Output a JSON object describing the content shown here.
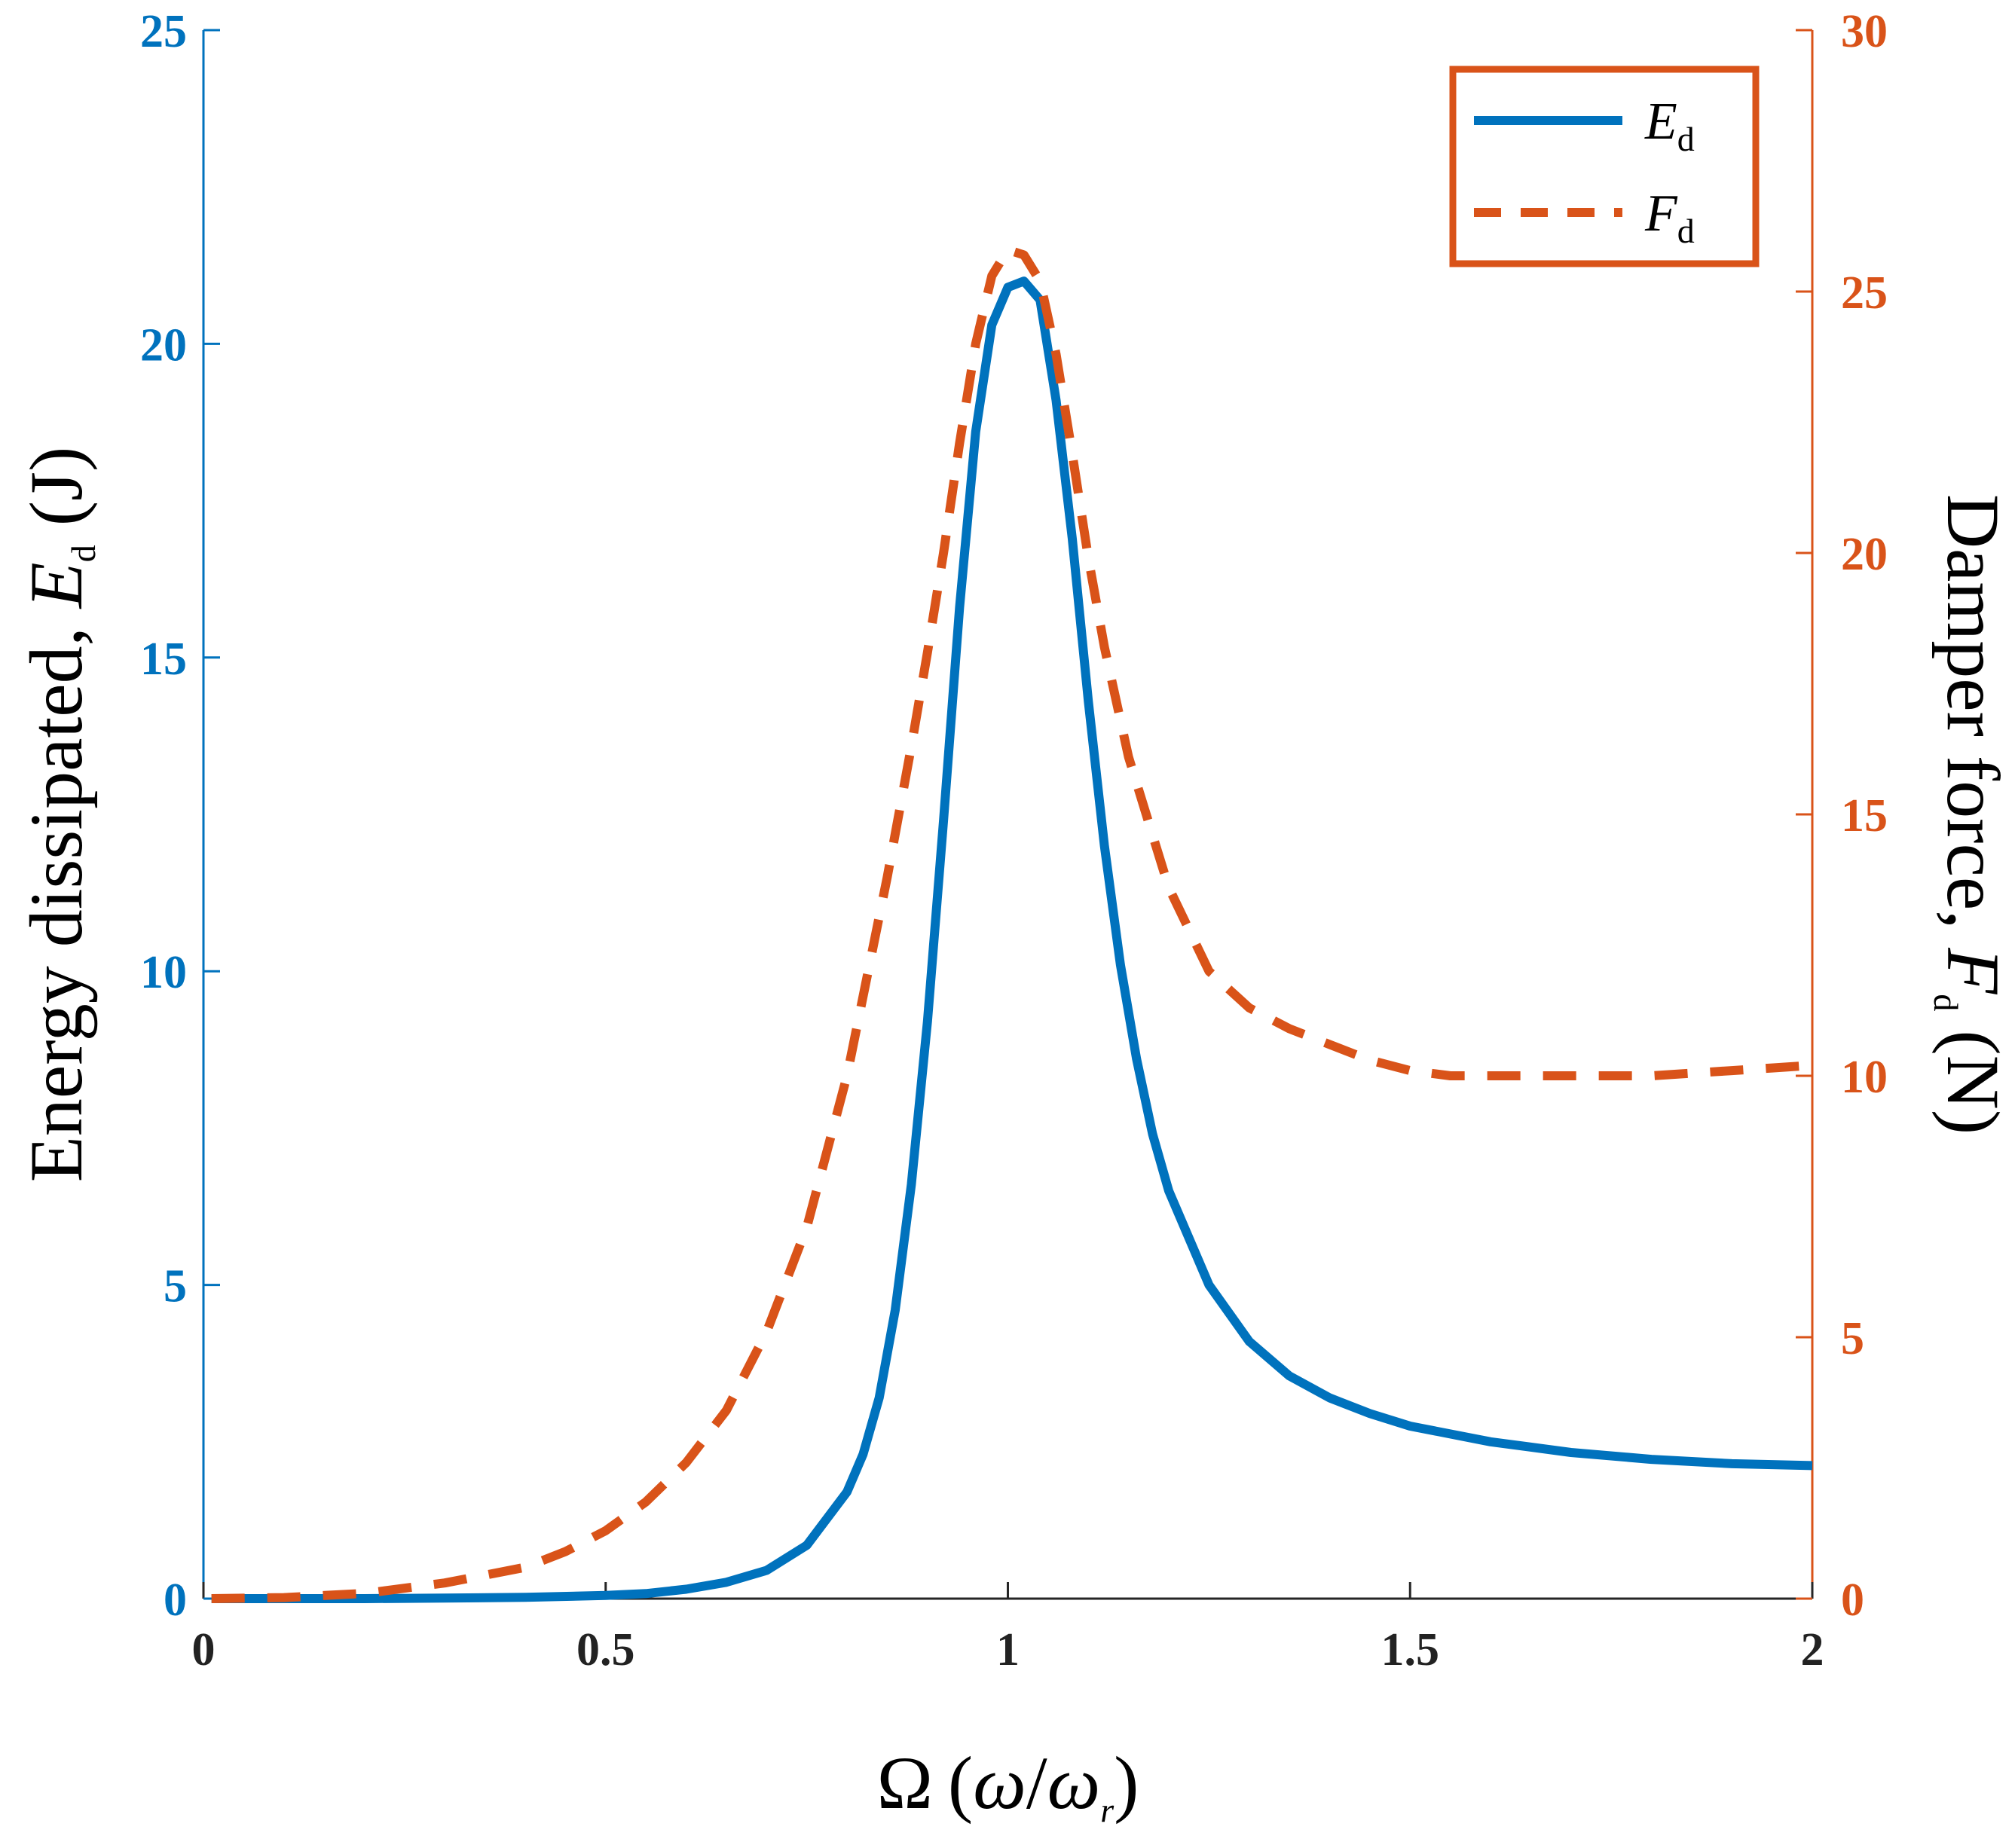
{
  "chart_data": {
    "type": "line",
    "xlabel": {
      "symbol": "Ω",
      "paren_open": "(",
      "num": "ω",
      "slash": "/",
      "den": "ω",
      "den_sub": "r",
      "paren_close": ")"
    },
    "ylabel_left": {
      "text": "Energy dissipated, ",
      "var": "E",
      "sub": "d",
      "unit": " (J)"
    },
    "ylabel_right": {
      "text": "Damper force, ",
      "var": "F",
      "sub": "d",
      "unit": " (N)"
    },
    "xlim": [
      0,
      2
    ],
    "ylim_left": [
      0,
      25
    ],
    "ylim_right": [
      0,
      30
    ],
    "x_ticks": [
      0,
      0.5,
      1,
      1.5,
      2
    ],
    "x_tick_labels": [
      "0",
      "0.5",
      "1",
      "1.5",
      "2"
    ],
    "y_left_ticks": [
      0,
      5,
      10,
      15,
      20,
      25
    ],
    "y_left_tick_labels": [
      "0",
      "5",
      "10",
      "15",
      "20",
      "25"
    ],
    "y_right_ticks": [
      0,
      5,
      10,
      15,
      20,
      25,
      30
    ],
    "y_right_tick_labels": [
      "0",
      "5",
      "10",
      "15",
      "20",
      "25",
      "30"
    ],
    "grid": false,
    "legend_position": "top-right",
    "series": [
      {
        "name": "E_d",
        "legend_var": "E",
        "legend_sub": "d",
        "axis": "left",
        "style": "solid",
        "color": "#0072BD",
        "x": [
          0.01,
          0.1,
          0.2,
          0.3,
          0.4,
          0.5,
          0.55,
          0.6,
          0.65,
          0.7,
          0.75,
          0.8,
          0.82,
          0.84,
          0.86,
          0.88,
          0.9,
          0.92,
          0.94,
          0.96,
          0.98,
          1.0,
          1.02,
          1.04,
          1.06,
          1.08,
          1.1,
          1.12,
          1.14,
          1.16,
          1.18,
          1.2,
          1.25,
          1.3,
          1.35,
          1.4,
          1.45,
          1.5,
          1.6,
          1.7,
          1.8,
          1.9,
          2.0
        ],
        "y": [
          0.0,
          0.0,
          0.0,
          0.01,
          0.02,
          0.05,
          0.08,
          0.15,
          0.26,
          0.45,
          0.85,
          1.7,
          2.3,
          3.2,
          4.6,
          6.6,
          9.2,
          12.4,
          15.8,
          18.6,
          20.3,
          20.9,
          21.0,
          20.7,
          19.1,
          16.9,
          14.3,
          12.0,
          10.1,
          8.6,
          7.4,
          6.5,
          5.0,
          4.1,
          3.55,
          3.2,
          2.95,
          2.75,
          2.5,
          2.33,
          2.22,
          2.15,
          2.12
        ]
      },
      {
        "name": "F_d",
        "legend_var": "F",
        "legend_sub": "d",
        "axis": "right",
        "style": "dashed",
        "color": "#D95319",
        "x": [
          0.01,
          0.1,
          0.2,
          0.3,
          0.4,
          0.45,
          0.5,
          0.55,
          0.6,
          0.65,
          0.7,
          0.75,
          0.8,
          0.85,
          0.88,
          0.9,
          0.92,
          0.94,
          0.96,
          0.98,
          1.0,
          1.02,
          1.04,
          1.06,
          1.08,
          1.1,
          1.12,
          1.15,
          1.2,
          1.25,
          1.3,
          1.35,
          1.4,
          1.45,
          1.5,
          1.55,
          1.6,
          1.65,
          1.7,
          1.75,
          1.8,
          1.85,
          1.9,
          1.95,
          2.0
        ],
        "y": [
          0.0,
          0.02,
          0.1,
          0.3,
          0.6,
          0.9,
          1.3,
          1.85,
          2.6,
          3.6,
          5.1,
          7.1,
          10.0,
          13.8,
          16.3,
          18.1,
          20.0,
          22.1,
          24.0,
          25.3,
          25.8,
          25.7,
          25.2,
          23.8,
          21.9,
          19.9,
          18.2,
          16.1,
          13.6,
          12.0,
          11.3,
          10.9,
          10.6,
          10.3,
          10.1,
          10.0,
          10.0,
          10.0,
          10.0,
          10.0,
          10.0,
          10.05,
          10.1,
          10.15,
          10.2
        ]
      }
    ]
  }
}
